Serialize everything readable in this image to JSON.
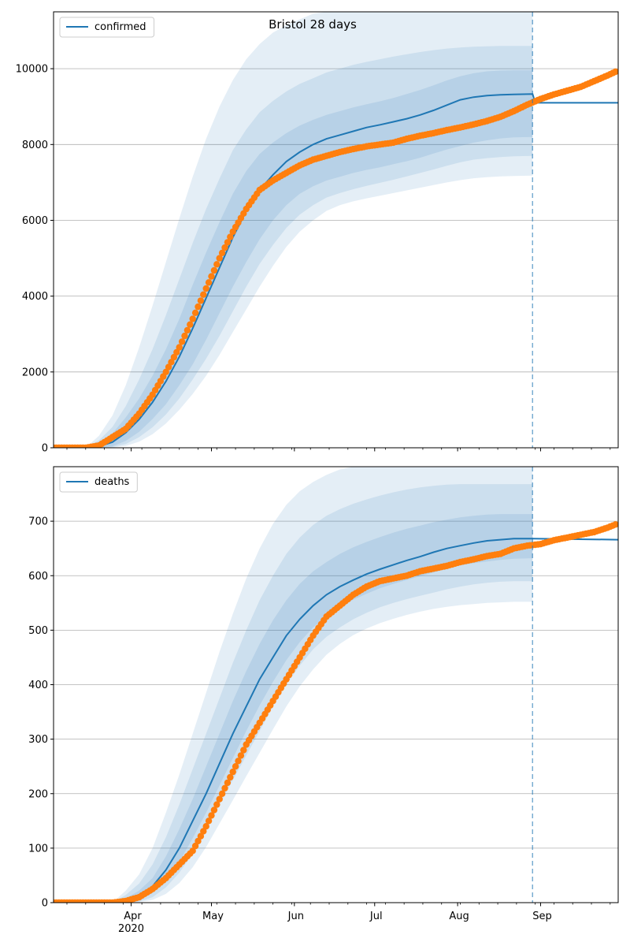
{
  "figure": {
    "title": "Bristol 28 days",
    "colors": {
      "model": "#1f77b4",
      "observed": "#ff7f0e",
      "band": "#1f77b4",
      "grid": "#b0b0b0",
      "axis": "#000000"
    }
  },
  "chart_data": [
    {
      "type": "line",
      "name": "confirmed-panel",
      "legend": "confirmed",
      "legend_location": "top-left",
      "xlim": [
        "2020-03-03",
        "2020-09-30"
      ],
      "ylim": [
        0,
        11500
      ],
      "yticks": [
        0,
        2000,
        4000,
        6000,
        8000,
        10000
      ],
      "grid": "y",
      "forecast_start": "2020-08-29",
      "model": {
        "x": [
          "2020-03-03",
          "2020-03-15",
          "2020-03-20",
          "2020-03-25",
          "2020-03-30",
          "2020-04-04",
          "2020-04-09",
          "2020-04-14",
          "2020-04-19",
          "2020-04-24",
          "2020-04-29",
          "2020-05-04",
          "2020-05-09",
          "2020-05-14",
          "2020-05-19",
          "2020-05-24",
          "2020-05-29",
          "2020-06-03",
          "2020-06-08",
          "2020-06-13",
          "2020-06-18",
          "2020-06-23",
          "2020-06-28",
          "2020-07-03",
          "2020-07-08",
          "2020-07-13",
          "2020-07-18",
          "2020-07-23",
          "2020-07-28",
          "2020-08-02",
          "2020-08-07",
          "2020-08-12",
          "2020-08-17",
          "2020-08-22",
          "2020-08-29",
          "2020-08-30",
          "2020-09-30"
        ],
        "y": [
          0,
          0,
          40,
          150,
          400,
          750,
          1200,
          1750,
          2400,
          3150,
          3950,
          4750,
          5550,
          6250,
          6800,
          7200,
          7550,
          7800,
          8000,
          8150,
          8250,
          8350,
          8450,
          8520,
          8600,
          8680,
          8780,
          8900,
          9040,
          9180,
          9250,
          9290,
          9310,
          9320,
          9330,
          9100,
          9100
        ],
        "bands": [
          {
            "lower": [
              0,
              0,
              0,
              40,
              180,
              420,
              760,
              1150,
              1650,
              2200,
              2850,
              3550,
              4250,
              4900,
              5500,
              6000,
              6400,
              6700,
              6900,
              7050,
              7150,
              7250,
              7330,
              7400,
              7480,
              7560,
              7650,
              7760,
              7870,
              7960,
              8050,
              8110,
              8160,
              8190,
              8200
            ],
            "upper": [
              0,
              0,
              120,
              380,
              800,
              1300,
              1900,
              2600,
              3400,
              4300,
              5150,
              5950,
              6700,
              7300,
              7750,
              8050,
              8300,
              8500,
              8650,
              8780,
              8880,
              8980,
              9060,
              9140,
              9230,
              9330,
              9440,
              9560,
              9690,
              9800,
              9880,
              9930,
              9950,
              9960,
              9960
            ]
          },
          {
            "lower": [
              0,
              0,
              0,
              20,
              100,
              280,
              540,
              880,
              1300,
              1800,
              2350,
              2950,
              3600,
              4250,
              4850,
              5350,
              5800,
              6150,
              6400,
              6600,
              6720,
              6820,
              6910,
              6990,
              7070,
              7160,
              7250,
              7340,
              7440,
              7530,
              7600,
              7640,
              7670,
              7690,
              7700
            ],
            "upper": [
              0,
              0,
              200,
              550,
              1100,
              1800,
              2600,
              3500,
              4450,
              5400,
              6300,
              7100,
              7850,
              8400,
              8850,
              9150,
              9400,
              9600,
              9750,
              9900,
              10000,
              10100,
              10180,
              10250,
              10320,
              10380,
              10440,
              10490,
              10530,
              10560,
              10580,
              10590,
              10600,
              10600,
              10600
            ]
          },
          {
            "lower": [
              0,
              0,
              0,
              5,
              50,
              160,
              360,
              640,
              1000,
              1420,
              1900,
              2450,
              3050,
              3650,
              4250,
              4800,
              5300,
              5700,
              6000,
              6250,
              6400,
              6500,
              6580,
              6650,
              6720,
              6790,
              6860,
              6930,
              7000,
              7060,
              7110,
              7140,
              7160,
              7170,
              7180
            ],
            "upper": [
              0,
              0,
              320,
              850,
              1650,
              2650,
              3750,
              4900,
              6050,
              7150,
              8150,
              9000,
              9700,
              10250,
              10650,
              10950,
              11150,
              11300,
              11450,
              11550,
              11650,
              11750,
              11850,
              11950,
              12000,
              12050,
              12100,
              12150,
              12200,
              12200,
              12200,
              12200,
              12200,
              12200,
              12200
            ]
          }
        ]
      },
      "observed": {
        "x": [
          "2020-03-03",
          "2020-03-15",
          "2020-03-20",
          "2020-03-25",
          "2020-03-30",
          "2020-04-04",
          "2020-04-09",
          "2020-04-14",
          "2020-04-19",
          "2020-04-24",
          "2020-04-29",
          "2020-05-04",
          "2020-05-09",
          "2020-05-14",
          "2020-05-19",
          "2020-05-24",
          "2020-05-29",
          "2020-06-03",
          "2020-06-08",
          "2020-06-13",
          "2020-06-18",
          "2020-06-23",
          "2020-06-28",
          "2020-07-03",
          "2020-07-08",
          "2020-07-13",
          "2020-07-18",
          "2020-07-23",
          "2020-07-28",
          "2020-08-02",
          "2020-08-07",
          "2020-08-12",
          "2020-08-17",
          "2020-08-22",
          "2020-08-27",
          "2020-09-01",
          "2020-09-06",
          "2020-09-11",
          "2020-09-16",
          "2020-09-21",
          "2020-09-26",
          "2020-09-29"
        ],
        "y": [
          0,
          0,
          60,
          280,
          500,
          900,
          1400,
          2000,
          2650,
          3400,
          4200,
          5000,
          5700,
          6300,
          6800,
          7050,
          7250,
          7450,
          7600,
          7700,
          7800,
          7880,
          7950,
          8000,
          8050,
          8150,
          8230,
          8300,
          8380,
          8450,
          8530,
          8620,
          8730,
          8880,
          9050,
          9200,
          9320,
          9420,
          9520,
          9670,
          9820,
          9920
        ]
      }
    },
    {
      "type": "line",
      "name": "deaths-panel",
      "legend": "deaths",
      "legend_location": "top-left",
      "xlim": [
        "2020-03-03",
        "2020-09-30"
      ],
      "ylim": [
        0,
        800
      ],
      "yticks": [
        0,
        100,
        200,
        300,
        400,
        500,
        600,
        700
      ],
      "grid": "y",
      "forecast_start": "2020-08-29",
      "model": {
        "x": [
          "2020-03-03",
          "2020-03-25",
          "2020-03-30",
          "2020-04-04",
          "2020-04-09",
          "2020-04-14",
          "2020-04-19",
          "2020-04-24",
          "2020-04-29",
          "2020-05-04",
          "2020-05-09",
          "2020-05-14",
          "2020-05-19",
          "2020-05-24",
          "2020-05-29",
          "2020-06-03",
          "2020-06-08",
          "2020-06-13",
          "2020-06-18",
          "2020-06-23",
          "2020-06-28",
          "2020-07-03",
          "2020-07-08",
          "2020-07-13",
          "2020-07-18",
          "2020-07-23",
          "2020-07-28",
          "2020-08-02",
          "2020-08-07",
          "2020-08-12",
          "2020-08-17",
          "2020-08-22",
          "2020-08-29",
          "2020-09-30"
        ],
        "y": [
          0,
          0,
          4,
          12,
          30,
          60,
          100,
          150,
          200,
          255,
          310,
          360,
          410,
          450,
          490,
          520,
          545,
          565,
          580,
          592,
          603,
          612,
          620,
          628,
          635,
          643,
          650,
          655,
          660,
          664,
          666,
          668,
          668,
          666
        ],
        "bands": [
          {
            "lower": [
              0,
              0,
              0,
              5,
              18,
              42,
              75,
              118,
              165,
              215,
              265,
              315,
              362,
              405,
              445,
              478,
              505,
              525,
              542,
              556,
              567,
              577,
              585,
              592,
              599,
              606,
              613,
              619,
              623,
              626,
              629,
              631,
              632
            ],
            "upper": [
              0,
              0,
              8,
              22,
              45,
              85,
              135,
              190,
              250,
              310,
              370,
              425,
              475,
              518,
              555,
              585,
              608,
              625,
              640,
              652,
              662,
              671,
              679,
              686,
              692,
              698,
              703,
              707,
              710,
              712,
              713,
              713,
              713
            ]
          },
          {
            "lower": [
              0,
              0,
              0,
              2,
              10,
              28,
              55,
              90,
              135,
              180,
              225,
              270,
              315,
              360,
              400,
              435,
              465,
              488,
              505,
              520,
              532,
              542,
              550,
              557,
              563,
              569,
              575,
              580,
              584,
              587,
              589,
              590,
              590
            ],
            "upper": [
              0,
              0,
              14,
              35,
              70,
              120,
              180,
              245,
              310,
              375,
              440,
              500,
              555,
              600,
              640,
              670,
              693,
              710,
              722,
              732,
              740,
              747,
              753,
              758,
              762,
              765,
              767,
              768,
              768,
              768,
              768,
              768,
              768
            ]
          },
          {
            "lower": [
              0,
              0,
              0,
              1,
              5,
              16,
              36,
              65,
              102,
              145,
              188,
              232,
              275,
              318,
              360,
              397,
              428,
              455,
              475,
              491,
              503,
              513,
              521,
              528,
              534,
              539,
              543,
              546,
              548,
              550,
              551,
              552,
              552
            ],
            "upper": [
              0,
              0,
              22,
              52,
              100,
              165,
              235,
              310,
              385,
              460,
              530,
              595,
              650,
              695,
              730,
              755,
              772,
              785,
              795,
              802,
              808,
              812,
              815,
              817,
              818,
              818,
              818,
              818,
              818,
              818,
              818,
              818,
              818
            ]
          }
        ]
      },
      "observed": {
        "x": [
          "2020-03-03",
          "2020-03-25",
          "2020-03-30",
          "2020-04-04",
          "2020-04-09",
          "2020-04-14",
          "2020-04-19",
          "2020-04-24",
          "2020-04-29",
          "2020-05-04",
          "2020-05-09",
          "2020-05-14",
          "2020-05-19",
          "2020-05-24",
          "2020-05-29",
          "2020-06-03",
          "2020-06-08",
          "2020-06-13",
          "2020-06-18",
          "2020-06-23",
          "2020-06-28",
          "2020-07-03",
          "2020-07-08",
          "2020-07-13",
          "2020-07-18",
          "2020-07-23",
          "2020-07-28",
          "2020-08-02",
          "2020-08-07",
          "2020-08-12",
          "2020-08-17",
          "2020-08-22",
          "2020-08-27",
          "2020-09-01",
          "2020-09-06",
          "2020-09-11",
          "2020-09-16",
          "2020-09-21",
          "2020-09-26",
          "2020-09-29"
        ],
        "y": [
          0,
          0,
          3,
          10,
          25,
          45,
          70,
          95,
          140,
          190,
          240,
          290,
          330,
          370,
          410,
          450,
          490,
          525,
          545,
          565,
          580,
          590,
          595,
          600,
          608,
          613,
          618,
          625,
          630,
          636,
          640,
          650,
          655,
          658,
          665,
          670,
          675,
          680,
          688,
          694
        ]
      }
    }
  ],
  "xaxis": {
    "ticks": [
      {
        "date": "2020-04-01",
        "label": "Apr"
      },
      {
        "date": "2020-05-01",
        "label": "May"
      },
      {
        "date": "2020-06-01",
        "label": "Jun"
      },
      {
        "date": "2020-07-01",
        "label": "Jul"
      },
      {
        "date": "2020-08-01",
        "label": "Aug"
      },
      {
        "date": "2020-09-01",
        "label": "Sep"
      }
    ],
    "year_label": "2020",
    "minor_weekly": true
  }
}
